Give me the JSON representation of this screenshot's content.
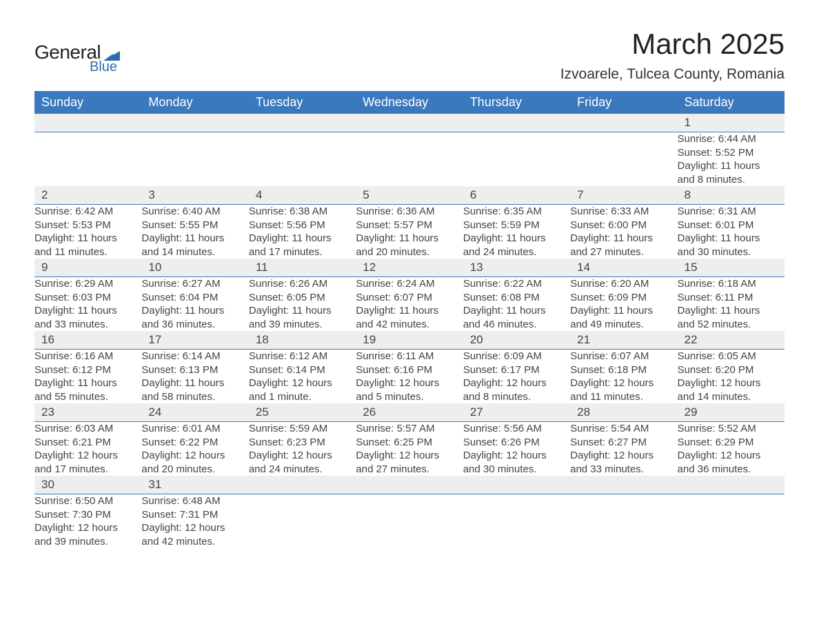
{
  "logo": {
    "general": "General",
    "blue": "Blue"
  },
  "title": "March 2025",
  "subtitle": "Izvoarele, Tulcea County, Romania",
  "colors": {
    "header_bg": "#3a79be",
    "header_fg": "#ffffff",
    "daynum_bg": "#eeeeee",
    "text": "#444444",
    "logo_blue": "#2d6bb0"
  },
  "weekdays": [
    "Sunday",
    "Monday",
    "Tuesday",
    "Wednesday",
    "Thursday",
    "Friday",
    "Saturday"
  ],
  "weeks": [
    [
      null,
      null,
      null,
      null,
      null,
      null,
      {
        "n": "1",
        "sunrise": "Sunrise: 6:44 AM",
        "sunset": "Sunset: 5:52 PM",
        "d1": "Daylight: 11 hours",
        "d2": "and 8 minutes."
      }
    ],
    [
      {
        "n": "2",
        "sunrise": "Sunrise: 6:42 AM",
        "sunset": "Sunset: 5:53 PM",
        "d1": "Daylight: 11 hours",
        "d2": "and 11 minutes."
      },
      {
        "n": "3",
        "sunrise": "Sunrise: 6:40 AM",
        "sunset": "Sunset: 5:55 PM",
        "d1": "Daylight: 11 hours",
        "d2": "and 14 minutes."
      },
      {
        "n": "4",
        "sunrise": "Sunrise: 6:38 AM",
        "sunset": "Sunset: 5:56 PM",
        "d1": "Daylight: 11 hours",
        "d2": "and 17 minutes."
      },
      {
        "n": "5",
        "sunrise": "Sunrise: 6:36 AM",
        "sunset": "Sunset: 5:57 PM",
        "d1": "Daylight: 11 hours",
        "d2": "and 20 minutes."
      },
      {
        "n": "6",
        "sunrise": "Sunrise: 6:35 AM",
        "sunset": "Sunset: 5:59 PM",
        "d1": "Daylight: 11 hours",
        "d2": "and 24 minutes."
      },
      {
        "n": "7",
        "sunrise": "Sunrise: 6:33 AM",
        "sunset": "Sunset: 6:00 PM",
        "d1": "Daylight: 11 hours",
        "d2": "and 27 minutes."
      },
      {
        "n": "8",
        "sunrise": "Sunrise: 6:31 AM",
        "sunset": "Sunset: 6:01 PM",
        "d1": "Daylight: 11 hours",
        "d2": "and 30 minutes."
      }
    ],
    [
      {
        "n": "9",
        "sunrise": "Sunrise: 6:29 AM",
        "sunset": "Sunset: 6:03 PM",
        "d1": "Daylight: 11 hours",
        "d2": "and 33 minutes."
      },
      {
        "n": "10",
        "sunrise": "Sunrise: 6:27 AM",
        "sunset": "Sunset: 6:04 PM",
        "d1": "Daylight: 11 hours",
        "d2": "and 36 minutes."
      },
      {
        "n": "11",
        "sunrise": "Sunrise: 6:26 AM",
        "sunset": "Sunset: 6:05 PM",
        "d1": "Daylight: 11 hours",
        "d2": "and 39 minutes."
      },
      {
        "n": "12",
        "sunrise": "Sunrise: 6:24 AM",
        "sunset": "Sunset: 6:07 PM",
        "d1": "Daylight: 11 hours",
        "d2": "and 42 minutes."
      },
      {
        "n": "13",
        "sunrise": "Sunrise: 6:22 AM",
        "sunset": "Sunset: 6:08 PM",
        "d1": "Daylight: 11 hours",
        "d2": "and 46 minutes."
      },
      {
        "n": "14",
        "sunrise": "Sunrise: 6:20 AM",
        "sunset": "Sunset: 6:09 PM",
        "d1": "Daylight: 11 hours",
        "d2": "and 49 minutes."
      },
      {
        "n": "15",
        "sunrise": "Sunrise: 6:18 AM",
        "sunset": "Sunset: 6:11 PM",
        "d1": "Daylight: 11 hours",
        "d2": "and 52 minutes."
      }
    ],
    [
      {
        "n": "16",
        "sunrise": "Sunrise: 6:16 AM",
        "sunset": "Sunset: 6:12 PM",
        "d1": "Daylight: 11 hours",
        "d2": "and 55 minutes."
      },
      {
        "n": "17",
        "sunrise": "Sunrise: 6:14 AM",
        "sunset": "Sunset: 6:13 PM",
        "d1": "Daylight: 11 hours",
        "d2": "and 58 minutes."
      },
      {
        "n": "18",
        "sunrise": "Sunrise: 6:12 AM",
        "sunset": "Sunset: 6:14 PM",
        "d1": "Daylight: 12 hours",
        "d2": "and 1 minute."
      },
      {
        "n": "19",
        "sunrise": "Sunrise: 6:11 AM",
        "sunset": "Sunset: 6:16 PM",
        "d1": "Daylight: 12 hours",
        "d2": "and 5 minutes."
      },
      {
        "n": "20",
        "sunrise": "Sunrise: 6:09 AM",
        "sunset": "Sunset: 6:17 PM",
        "d1": "Daylight: 12 hours",
        "d2": "and 8 minutes."
      },
      {
        "n": "21",
        "sunrise": "Sunrise: 6:07 AM",
        "sunset": "Sunset: 6:18 PM",
        "d1": "Daylight: 12 hours",
        "d2": "and 11 minutes."
      },
      {
        "n": "22",
        "sunrise": "Sunrise: 6:05 AM",
        "sunset": "Sunset: 6:20 PM",
        "d1": "Daylight: 12 hours",
        "d2": "and 14 minutes."
      }
    ],
    [
      {
        "n": "23",
        "sunrise": "Sunrise: 6:03 AM",
        "sunset": "Sunset: 6:21 PM",
        "d1": "Daylight: 12 hours",
        "d2": "and 17 minutes."
      },
      {
        "n": "24",
        "sunrise": "Sunrise: 6:01 AM",
        "sunset": "Sunset: 6:22 PM",
        "d1": "Daylight: 12 hours",
        "d2": "and 20 minutes."
      },
      {
        "n": "25",
        "sunrise": "Sunrise: 5:59 AM",
        "sunset": "Sunset: 6:23 PM",
        "d1": "Daylight: 12 hours",
        "d2": "and 24 minutes."
      },
      {
        "n": "26",
        "sunrise": "Sunrise: 5:57 AM",
        "sunset": "Sunset: 6:25 PM",
        "d1": "Daylight: 12 hours",
        "d2": "and 27 minutes."
      },
      {
        "n": "27",
        "sunrise": "Sunrise: 5:56 AM",
        "sunset": "Sunset: 6:26 PM",
        "d1": "Daylight: 12 hours",
        "d2": "and 30 minutes."
      },
      {
        "n": "28",
        "sunrise": "Sunrise: 5:54 AM",
        "sunset": "Sunset: 6:27 PM",
        "d1": "Daylight: 12 hours",
        "d2": "and 33 minutes."
      },
      {
        "n": "29",
        "sunrise": "Sunrise: 5:52 AM",
        "sunset": "Sunset: 6:29 PM",
        "d1": "Daylight: 12 hours",
        "d2": "and 36 minutes."
      }
    ],
    [
      {
        "n": "30",
        "sunrise": "Sunrise: 6:50 AM",
        "sunset": "Sunset: 7:30 PM",
        "d1": "Daylight: 12 hours",
        "d2": "and 39 minutes."
      },
      {
        "n": "31",
        "sunrise": "Sunrise: 6:48 AM",
        "sunset": "Sunset: 7:31 PM",
        "d1": "Daylight: 12 hours",
        "d2": "and 42 minutes."
      },
      null,
      null,
      null,
      null,
      null
    ]
  ]
}
